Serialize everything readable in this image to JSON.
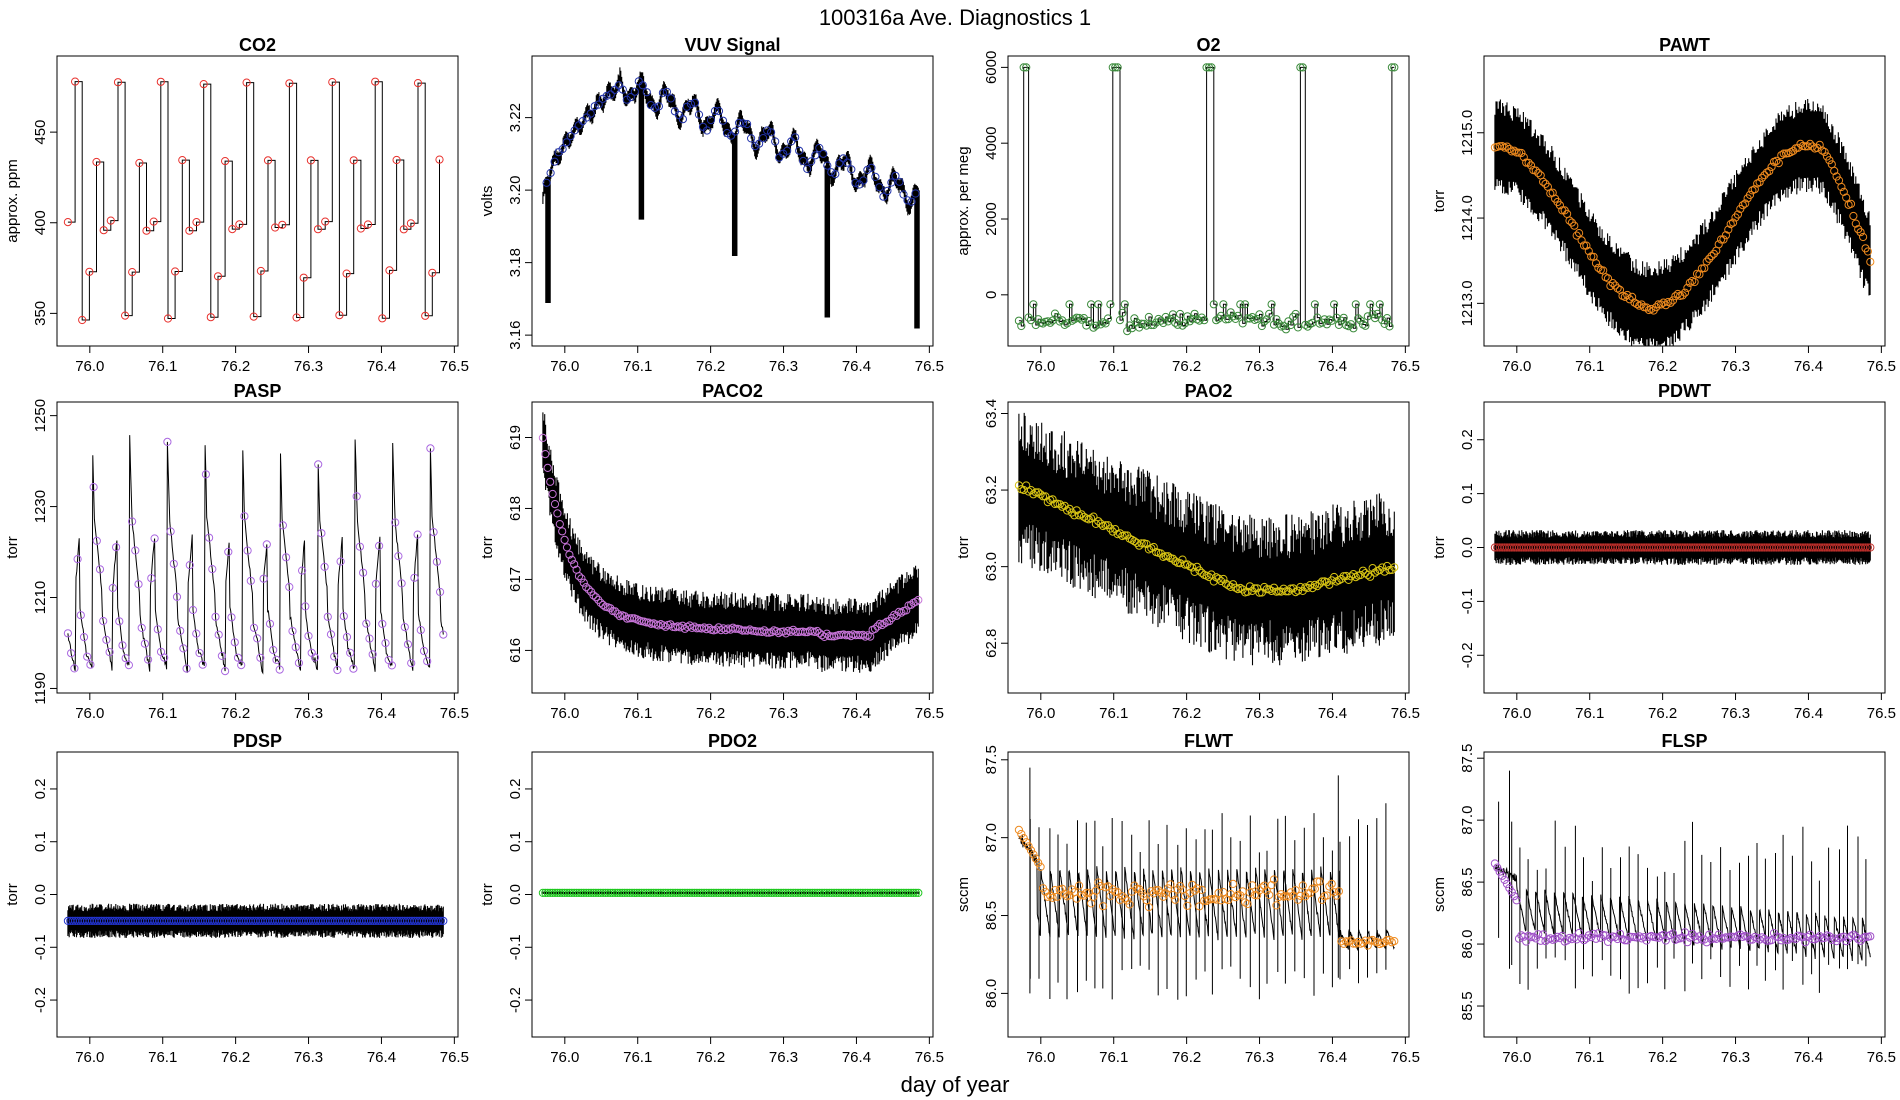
{
  "figure": {
    "title": "100316a   Ave. Diagnostics 1",
    "xlabel": "day of year"
  },
  "chart_data": [
    {
      "type": "line",
      "title": "CO2",
      "ylabel": "approx. ppm",
      "xlim": [
        75.955,
        76.505
      ],
      "ylim": [
        332,
        492
      ],
      "xticks": [
        "76.0",
        "76.1",
        "76.2",
        "76.3",
        "76.4",
        "76.5"
      ],
      "yticks": [
        "350",
        "400",
        "450"
      ],
      "pattern": "co2",
      "marker_color": "#e8302c",
      "x_start": 75.97,
      "x_end": 76.485
    },
    {
      "type": "line",
      "title": "VUV Signal",
      "ylabel": "volts",
      "xlim": [
        75.955,
        76.505
      ],
      "ylim": [
        3.157,
        3.237
      ],
      "xticks": [
        "76.0",
        "76.1",
        "76.2",
        "76.3",
        "76.4",
        "76.5"
      ],
      "yticks": [
        "3.16",
        "3.18",
        "3.20",
        "3.22"
      ],
      "pattern": "vuv",
      "marker_color": "#2233aa",
      "x_start": 75.97,
      "x_end": 76.485
    },
    {
      "type": "line",
      "title": "O2",
      "ylabel": "approx. per meg",
      "xlim": [
        75.955,
        76.505
      ],
      "ylim": [
        -1350,
        6300
      ],
      "xticks": [
        "76.0",
        "76.1",
        "76.2",
        "76.3",
        "76.4",
        "76.5"
      ],
      "yticks": [
        "0",
        "2000",
        "4000",
        "6000"
      ],
      "pattern": "o2",
      "marker_color": "#3a8a3a",
      "x_start": 75.97,
      "x_end": 76.485
    },
    {
      "type": "line",
      "title": "PAWT",
      "ylabel": "torr",
      "xlim": [
        75.955,
        76.505
      ],
      "ylim": [
        1212.5,
        1215.9
      ],
      "xticks": [
        "76.0",
        "76.1",
        "76.2",
        "76.3",
        "76.4",
        "76.5"
      ],
      "yticks": [
        "1213.0",
        "1214.0",
        "1215.0"
      ],
      "pattern": "pawt",
      "marker_color": "#ee8a1e",
      "x_start": 75.97,
      "x_end": 76.485
    },
    {
      "type": "line",
      "title": "PASP",
      "ylabel": "torr",
      "xlim": [
        75.955,
        76.505
      ],
      "ylim": [
        1189,
        1253
      ],
      "xticks": [
        "76.0",
        "76.1",
        "76.2",
        "76.3",
        "76.4",
        "76.5"
      ],
      "yticks": [
        "1190",
        "1210",
        "1230",
        "1250"
      ],
      "pattern": "pasp",
      "marker_color": "#a966e0",
      "x_start": 75.97,
      "x_end": 76.485
    },
    {
      "type": "line",
      "title": "PACO2",
      "ylabel": "torr",
      "xlim": [
        75.955,
        76.505
      ],
      "ylim": [
        615.4,
        619.5
      ],
      "xticks": [
        "76.0",
        "76.1",
        "76.2",
        "76.3",
        "76.4",
        "76.5"
      ],
      "yticks": [
        "616",
        "617",
        "618",
        "619"
      ],
      "pattern": "paco2",
      "marker_color": "#c774d8",
      "x_start": 75.97,
      "x_end": 76.485
    },
    {
      "type": "line",
      "title": "PAO2",
      "ylabel": "torr",
      "xlim": [
        75.955,
        76.505
      ],
      "ylim": [
        62.67,
        63.43
      ],
      "xticks": [
        "76.0",
        "76.1",
        "76.2",
        "76.3",
        "76.4",
        "76.5"
      ],
      "yticks": [
        "62.8",
        "63.0",
        "63.2",
        "63.4"
      ],
      "pattern": "pao2",
      "marker_color": "#d8c414",
      "x_start": 75.97,
      "x_end": 76.485
    },
    {
      "type": "line",
      "title": "PDWT",
      "ylabel": "torr",
      "xlim": [
        75.955,
        76.505
      ],
      "ylim": [
        -0.27,
        0.27
      ],
      "xticks": [
        "76.0",
        "76.1",
        "76.2",
        "76.3",
        "76.4",
        "76.5"
      ],
      "yticks": [
        "-0.2",
        "-0.1",
        "0.0",
        "0.1",
        "0.2"
      ],
      "pattern": "pdwt",
      "marker_color": "#c0302c",
      "x_start": 75.97,
      "x_end": 76.485
    },
    {
      "type": "line",
      "title": "PDSP",
      "ylabel": "torr",
      "xlim": [
        75.955,
        76.505
      ],
      "ylim": [
        -0.27,
        0.27
      ],
      "xticks": [
        "76.0",
        "76.1",
        "76.2",
        "76.3",
        "76.4",
        "76.5"
      ],
      "yticks": [
        "-0.2",
        "-0.1",
        "0.0",
        "0.1",
        "0.2"
      ],
      "pattern": "pdsp",
      "marker_color": "#2233cc",
      "x_start": 75.97,
      "x_end": 76.485
    },
    {
      "type": "line",
      "title": "PDO2",
      "ylabel": "torr",
      "xlim": [
        75.955,
        76.505
      ],
      "ylim": [
        -0.27,
        0.27
      ],
      "xticks": [
        "76.0",
        "76.1",
        "76.2",
        "76.3",
        "76.4",
        "76.5"
      ],
      "yticks": [
        "-0.2",
        "-0.1",
        "0.0",
        "0.1",
        "0.2"
      ],
      "pattern": "pdo2",
      "marker_color": "#1ec81e",
      "x_start": 75.97,
      "x_end": 76.485
    },
    {
      "type": "line",
      "title": "FLWT",
      "ylabel": "sccm",
      "xlim": [
        75.955,
        76.505
      ],
      "ylim": [
        85.72,
        87.55
      ],
      "xticks": [
        "76.0",
        "76.1",
        "76.2",
        "76.3",
        "76.4",
        "76.5"
      ],
      "yticks": [
        "86.0",
        "86.5",
        "87.0",
        "87.5"
      ],
      "pattern": "flwt",
      "marker_color": "#ee8a1e",
      "x_start": 75.97,
      "x_end": 76.485
    },
    {
      "type": "line",
      "title": "FLSP",
      "ylabel": "sccm",
      "xlim": [
        75.955,
        76.505
      ],
      "ylim": [
        85.25,
        87.55
      ],
      "xticks": [
        "76.0",
        "76.1",
        "76.2",
        "76.3",
        "76.4",
        "76.5"
      ],
      "yticks": [
        "85.5",
        "86.0",
        "86.5",
        "87.0",
        "87.5"
      ],
      "pattern": "flsp",
      "marker_color": "#a050c8",
      "x_start": 75.97,
      "x_end": 76.485
    }
  ]
}
